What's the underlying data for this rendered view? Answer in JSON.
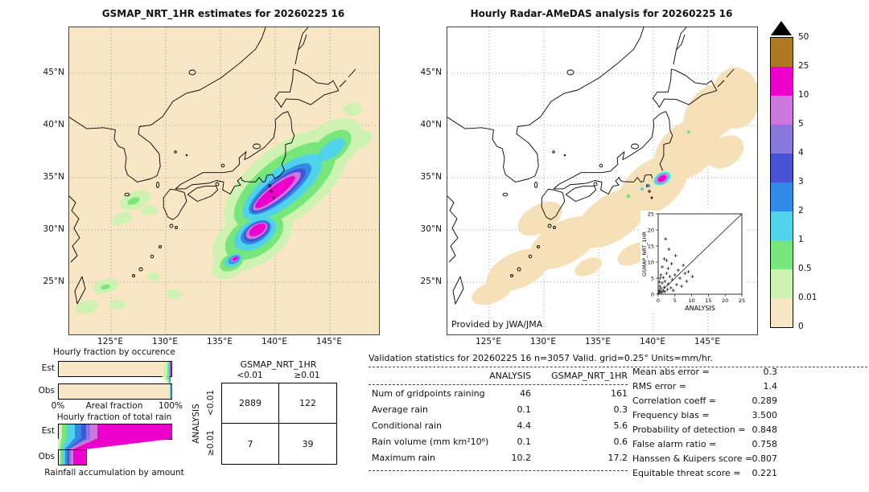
{
  "left_panel": {
    "title": "GSMAP_NRT_1HR estimates for 20260225 16",
    "x_ticks": [
      "125°E",
      "130°E",
      "135°E",
      "140°E",
      "145°E"
    ],
    "y_ticks": [
      "45°N",
      "40°N",
      "35°N",
      "30°N",
      "25°N"
    ]
  },
  "right_panel": {
    "title": "Hourly Radar-AMeDAS analysis for 20260225 16",
    "x_ticks": [
      "125°E",
      "130°E",
      "135°E",
      "140°E",
      "145°E"
    ],
    "y_ticks": [
      "45°N",
      "40°N",
      "35°N",
      "30°N",
      "25°N"
    ],
    "credit": "Provided by JWA/JMA",
    "inset": {
      "xlabel": "ANALYSIS",
      "ylabel": "GSMAP_NRT_1HR",
      "ticks": [
        0,
        5,
        10,
        15,
        20,
        25
      ]
    }
  },
  "colorbar": {
    "labels": [
      "50",
      "25",
      "10",
      "5",
      "4",
      "3",
      "2",
      "1",
      "0.5",
      "0.01",
      "0"
    ],
    "colors": [
      "#b07820",
      "#ee00cc",
      "#cc77dd",
      "#8877dd",
      "#4753d6",
      "#2f8ae8",
      "#4fd2ea",
      "#77e77c",
      "#cdf2b2",
      "#f8e6c4"
    ]
  },
  "palette": {
    "map_background_left": "#f8e6c4",
    "map_background_right": "#ffffff",
    "radar_light_rain": "#f6e0b8",
    "heavy_rain_magenta": "#ee00cc"
  },
  "occurrence": {
    "title": "Hourly fraction by occurence",
    "row_labels": [
      "Est",
      "Obs"
    ],
    "axis_left": "0%",
    "axis_center": "Areal fraction",
    "axis_right": "100%",
    "est_segments": [
      {
        "color": "#f8e6c4",
        "pct": 92.6
      },
      {
        "color": "#cdf2b2",
        "pct": 3.6
      },
      {
        "color": "#77e77c",
        "pct": 1.6
      },
      {
        "color": "#4fd2ea",
        "pct": 0.9
      },
      {
        "color": "#2f8ae8",
        "pct": 0.7
      },
      {
        "color": "#ee00cc",
        "pct": 0.6
      }
    ],
    "obs_segments": [
      {
        "color": "#f8e6c4",
        "pct": 97.6
      },
      {
        "color": "#cdf2b2",
        "pct": 1.0
      },
      {
        "color": "#77e77c",
        "pct": 0.6
      },
      {
        "color": "#4fd2ea",
        "pct": 0.4
      },
      {
        "color": "#2f8ae8",
        "pct": 0.2
      },
      {
        "color": "#ee00cc",
        "pct": 0.2
      }
    ]
  },
  "total_rain": {
    "title": "Hourly fraction of total rain",
    "row_labels": [
      "Est",
      "Obs"
    ],
    "caption": "Rainfall accumulation by amount",
    "obs_length_pct": 24,
    "est_segments": [
      {
        "color": "#cdf2b2",
        "pct": 3
      },
      {
        "color": "#77e77c",
        "pct": 4
      },
      {
        "color": "#4fd2ea",
        "pct": 7
      },
      {
        "color": "#2f8ae8",
        "pct": 6
      },
      {
        "color": "#4753d6",
        "pct": 4
      },
      {
        "color": "#8877dd",
        "pct": 4
      },
      {
        "color": "#cc77dd",
        "pct": 6
      },
      {
        "color": "#ee00cc",
        "pct": 66
      }
    ],
    "obs_segments": [
      {
        "color": "#cdf2b2",
        "pct": 6
      },
      {
        "color": "#77e77c",
        "pct": 7
      },
      {
        "color": "#4fd2ea",
        "pct": 11
      },
      {
        "color": "#2f8ae8",
        "pct": 9
      },
      {
        "color": "#4753d6",
        "pct": 6
      },
      {
        "color": "#8877dd",
        "pct": 6
      },
      {
        "color": "#cc77dd",
        "pct": 9
      },
      {
        "color": "#ee00cc",
        "pct": 46
      }
    ]
  },
  "contingency": {
    "col_group": "GSMAP_NRT_1HR",
    "row_group": "ANALYSIS",
    "col_labels": [
      "<0.01",
      "≥0.01"
    ],
    "row_labels": [
      "<0.01",
      "≥0.01"
    ],
    "values": [
      [
        2889,
        122
      ],
      [
        7,
        39
      ]
    ]
  },
  "stats": {
    "header": "Validation statistics for 20260225 16  n=3057 Valid. grid=0.25°  Units=mm/hr.",
    "col_headers": [
      "ANALYSIS",
      "GSMAP_NRT_1HR"
    ],
    "rows": [
      {
        "label": "Num of gridpoints raining",
        "analysis": "46",
        "gsmap": "161"
      },
      {
        "label": "Average rain",
        "analysis": "0.1",
        "gsmap": "0.3"
      },
      {
        "label": "Conditional rain",
        "analysis": "4.4",
        "gsmap": "5.6"
      },
      {
        "label": "Rain volume (mm km²10⁶)",
        "analysis": "0.1",
        "gsmap": "0.6"
      },
      {
        "label": "Maximum rain",
        "analysis": "10.2",
        "gsmap": "17.2"
      }
    ],
    "metrics": [
      {
        "label": "Mean abs error =",
        "value": "0.3"
      },
      {
        "label": "RMS error =",
        "value": "1.4"
      },
      {
        "label": "Correlation coeff =",
        "value": "0.289"
      },
      {
        "label": "Frequency bias =",
        "value": "3.500"
      },
      {
        "label": "Probability of detection =",
        "value": "0.848"
      },
      {
        "label": "False alarm ratio =",
        "value": "0.758"
      },
      {
        "label": "Hanssen & Kuipers score =",
        "value": "0.807"
      },
      {
        "label": "Equitable threat score =",
        "value": "0.221"
      }
    ]
  },
  "chart_data": [
    {
      "type": "heatmap",
      "panel": "left",
      "title": "GSMAP_NRT_1HR estimates for 20260225 16",
      "units": "mm/hr",
      "levels": [
        0,
        0.01,
        0.5,
        1,
        2,
        3,
        4,
        5,
        10,
        25,
        50
      ],
      "lon_ticks": [
        "125°E",
        "130°E",
        "135°E",
        "140°E",
        "145°E"
      ],
      "lat_ticks": [
        "45°N",
        "40°N",
        "35°N",
        "30°N",
        "25°N"
      ],
      "max_value": 17.2,
      "description": "SW-NE precipitation band over central Japan with magenta core (10-25 mm/hr)"
    },
    {
      "type": "heatmap",
      "panel": "right",
      "title": "Hourly Radar-AMeDAS analysis for 20260225 16",
      "units": "mm/hr",
      "levels": [
        0,
        0.01,
        0.5,
        1,
        2,
        3,
        4,
        5,
        10,
        25,
        50
      ],
      "lon_ticks": [
        "125°E",
        "130°E",
        "135°E",
        "140°E",
        "145°E"
      ],
      "lat_ticks": [
        "45°N",
        "40°N",
        "35°N",
        "30°N",
        "25°N"
      ],
      "max_value": 10.2,
      "description": "Light rain swath along Japan radar coverage with small heavy-rain spot near 140°E 35°N"
    },
    {
      "type": "scatter",
      "title": "GSMAP_NRT_1HR vs ANALYSIS",
      "xlabel": "ANALYSIS",
      "ylabel": "GSMAP_NRT_1HR",
      "xlim": [
        0,
        25
      ],
      "ylim": [
        0,
        25
      ],
      "ticks": [
        0,
        5,
        10,
        15,
        20,
        25
      ],
      "points": [
        [
          0.2,
          0.4
        ],
        [
          0.3,
          1.2
        ],
        [
          0.5,
          0.8
        ],
        [
          0.5,
          2.5
        ],
        [
          0.6,
          5
        ],
        [
          0.8,
          1.8
        ],
        [
          0.8,
          6
        ],
        [
          1,
          0.5
        ],
        [
          1.2,
          3.5
        ],
        [
          1.2,
          8.5
        ],
        [
          1.5,
          1
        ],
        [
          1.5,
          5.2
        ],
        [
          1.8,
          2.2
        ],
        [
          1.8,
          11
        ],
        [
          2,
          0.8
        ],
        [
          2,
          4
        ],
        [
          2.2,
          17.2
        ],
        [
          2.5,
          6.5
        ],
        [
          2.5,
          10.5
        ],
        [
          2.8,
          1.5
        ],
        [
          3,
          3.2
        ],
        [
          3,
          8
        ],
        [
          3.2,
          14
        ],
        [
          3.5,
          5.5
        ],
        [
          3.8,
          2
        ],
        [
          4,
          9.5
        ],
        [
          4.2,
          4.5
        ],
        [
          4.5,
          1.2
        ],
        [
          5,
          6
        ],
        [
          5.2,
          12
        ],
        [
          5.5,
          3
        ],
        [
          6,
          7.5
        ],
        [
          6.5,
          5
        ],
        [
          7,
          2.5
        ],
        [
          7.5,
          9
        ],
        [
          8,
          6.5
        ],
        [
          8.5,
          4
        ],
        [
          9,
          7
        ],
        [
          10.2,
          5.5
        ],
        [
          0.4,
          3.8
        ]
      ]
    },
    {
      "type": "bar",
      "title": "Hourly fraction by occurence",
      "categories": [
        "Est",
        "Obs"
      ],
      "note": "stacked areal fraction by rain intensity; segment data in occurrence.est_segments / occurrence.obs_segments"
    },
    {
      "type": "bar",
      "title": "Hourly fraction of total rain",
      "categories": [
        "Est",
        "Obs"
      ],
      "note": "stacked rain-volume fraction; Obs bar length 24% of Est; segment data in total_rain"
    },
    {
      "type": "table",
      "title": "Contingency table",
      "col_group": "GSMAP_NRT_1HR",
      "row_group": "ANALYSIS",
      "columns": [
        "<0.01",
        "≥0.01"
      ],
      "rows": [
        "<0.01",
        "≥0.01"
      ],
      "values": [
        [
          2889,
          122
        ],
        [
          7,
          39
        ]
      ]
    },
    {
      "type": "table",
      "title": "Validation statistics",
      "columns": [
        "ANALYSIS",
        "GSMAP_NRT_1HR"
      ],
      "rows": [
        [
          "Num of gridpoints raining",
          46,
          161
        ],
        [
          "Average rain",
          0.1,
          0.3
        ],
        [
          "Conditional rain",
          4.4,
          5.6
        ],
        [
          "Rain volume (mm km²10⁶)",
          0.1,
          0.6
        ],
        [
          "Maximum rain",
          10.2,
          17.2
        ]
      ],
      "metrics": {
        "Mean abs error": 0.3,
        "RMS error": 1.4,
        "Correlation coeff": 0.289,
        "Frequency bias": 3.5,
        "Probability of detection": 0.848,
        "False alarm ratio": 0.758,
        "Hanssen & Kuipers score": 0.807,
        "Equitable threat score": 0.221
      }
    }
  ]
}
